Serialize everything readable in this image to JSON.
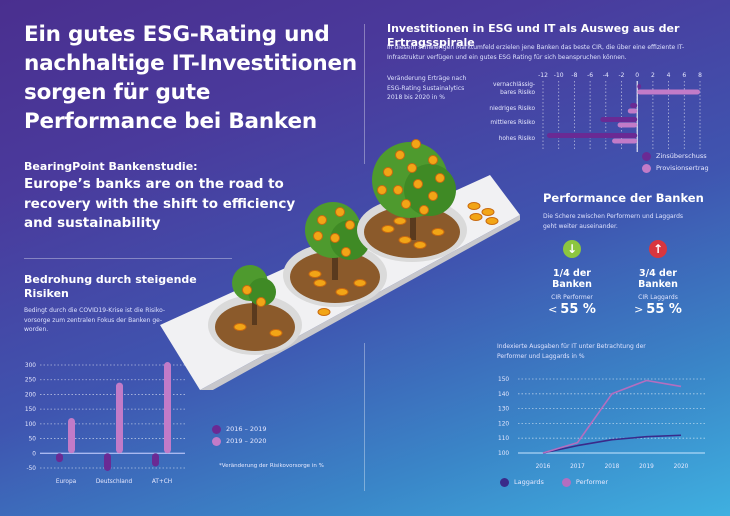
{
  "header": {
    "title": "Ein gutes ESG-Rating und nachhaltige IT-Investitionen sorgen für gute Performance bei Banken",
    "kicker": "BearingPoint Bankenstudie:",
    "subtitle": "Europe’s banks are on the road to recovery with the shift to efficiency and sustainability"
  },
  "risk_section": {
    "title": "Bedrohung durch steigende Risiken",
    "text": "Bedingt durch die COVID19-Krise ist die Risiko-vorsorge zum zentralen Fokus der Banken ge-worden.",
    "footnote": "*Veränderung der Risikovorsorge in %"
  },
  "esg_section": {
    "title": "Investitionen in ESG und IT als Ausweg aus der Ertragsspirale",
    "text": "In diesem schwierigen Marktumfeld erzielen jene Banken das beste CIR, die über eine effiziente IT-Infrastruktur verfügen und ein gutes ESG Rating für sich beanspruchen können.",
    "chart_note": "Veränderung Erträge nach ESG-Rating Sustainalytics 2018 bis 2020 in %"
  },
  "performance_section": {
    "title": "Performance der Banken",
    "text": "Die Schere zwischen Performern und Laggards geht weiter auseinander.",
    "performer": {
      "icon": "arrow-down-icon",
      "color": "#8cc63f",
      "share": "1/4 der Banken",
      "label": "CIR Performer",
      "op": "<",
      "value": "55 %"
    },
    "laggard": {
      "icon": "arrow-up-icon",
      "color": "#d9363e",
      "share": "3/4 der Banken",
      "label": "CIR Laggards",
      "op": ">",
      "value": "55 %"
    },
    "chart_note": "Indexierte Ausgaben für IT unter Betrachtung der Performer und Laggards in %"
  },
  "illustration": {
    "description": "Three isometric money trees with euro coins growing in planters"
  },
  "colors": {
    "dark_series": "#6a2a94",
    "light_series": "#c27bc8",
    "line_dark": "#3a2a8a",
    "line_light": "#b46ec0"
  },
  "chart_data": [
    {
      "type": "bar",
      "orientation": "horizontal",
      "title": "Veränderung Erträge nach ESG-Rating Sustainalytics 2018 bis 2020 in %",
      "categories": [
        "vernachlässig-bares Risiko",
        "niedriges Risiko",
        "mittleres Risiko",
        "hohes Risiko"
      ],
      "series": [
        {
          "name": "Zinsüberschuss",
          "values": [
            0.5,
            -0.9,
            -4.7,
            -11.5
          ]
        },
        {
          "name": "Provisionsertrag",
          "values": [
            8.0,
            -1.2,
            -2.5,
            -3.2
          ]
        }
      ],
      "x_ticks": [
        "-12",
        "-10",
        "-8",
        "-6",
        "-4",
        "-2",
        "0",
        "2",
        "4",
        "6",
        "8"
      ],
      "xlim": [
        -12,
        8
      ],
      "grid": true,
      "legend": "bottom-right"
    },
    {
      "type": "bar",
      "title": "Veränderung der Risikovorsorge in %",
      "categories": [
        "Europa",
        "Deutschland",
        "AT+CH"
      ],
      "series": [
        {
          "name": "2016 – 2019",
          "values": [
            -30,
            -60,
            -45
          ]
        },
        {
          "name": "2019 – 2020",
          "values": [
            120,
            240,
            310
          ]
        }
      ],
      "y_ticks": [
        "300",
        "250",
        "200",
        "150",
        "100",
        "50",
        "0",
        "-50"
      ],
      "ylim": [
        -50,
        300
      ],
      "grid": true,
      "legend": "right"
    },
    {
      "type": "line",
      "title": "Indexierte Ausgaben für IT unter Betrachtung der Performer und Laggards in %",
      "x": [
        "2016",
        "2017",
        "2018",
        "2019",
        "2020"
      ],
      "series": [
        {
          "name": "Laggards",
          "values": [
            100,
            105,
            109,
            111,
            112
          ]
        },
        {
          "name": "Performer",
          "values": [
            100,
            107,
            140,
            149,
            145
          ]
        }
      ],
      "y_ticks": [
        "150",
        "140",
        "130",
        "120",
        "110",
        "100"
      ],
      "ylim": [
        100,
        150
      ],
      "grid": true,
      "legend": "bottom-left"
    }
  ]
}
